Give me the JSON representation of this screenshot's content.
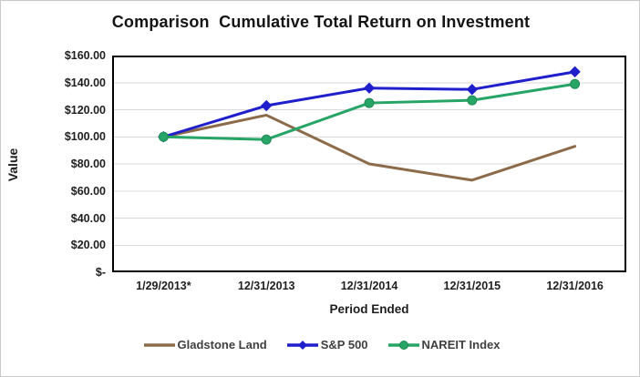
{
  "chart_data": {
    "type": "line",
    "title": "Comparison  Cumulative Total Return on Investment",
    "xlabel": "Period Ended",
    "ylabel": "Value",
    "categories": [
      "1/29/2013*",
      "12/31/2013",
      "12/31/2014",
      "12/31/2015",
      "12/31/2016"
    ],
    "series": [
      {
        "name": "Gladstone Land",
        "color": "#8C6B4A",
        "marker": "none",
        "values": [
          100,
          116,
          80,
          68,
          93
        ]
      },
      {
        "name": "S&P 500",
        "color": "#1F1FCC",
        "marker": "diamond",
        "values": [
          100,
          123,
          136,
          135,
          148
        ]
      },
      {
        "name": "NAREIT Index",
        "color": "#26A566",
        "marker": "circle",
        "values": [
          100,
          98,
          125,
          127,
          139
        ]
      }
    ],
    "ylim": [
      0,
      160
    ],
    "ytick_step": 20,
    "ytick_labels": [
      "$-",
      "$20.00",
      "$40.00",
      "$60.00",
      "$80.00",
      "$100.00",
      "$120.00",
      "$140.00",
      "$160.00"
    ],
    "grid": "horizontal",
    "gridline_color": "#D9D9D9",
    "plot_border_color": "#000000",
    "legend_position": "bottom"
  },
  "layout_note_colors": {
    "accent_blue": "#1F1FCC",
    "accent_green": "#26A566",
    "accent_brown": "#8C6B4A",
    "text_dark": "#1F1F1F"
  }
}
